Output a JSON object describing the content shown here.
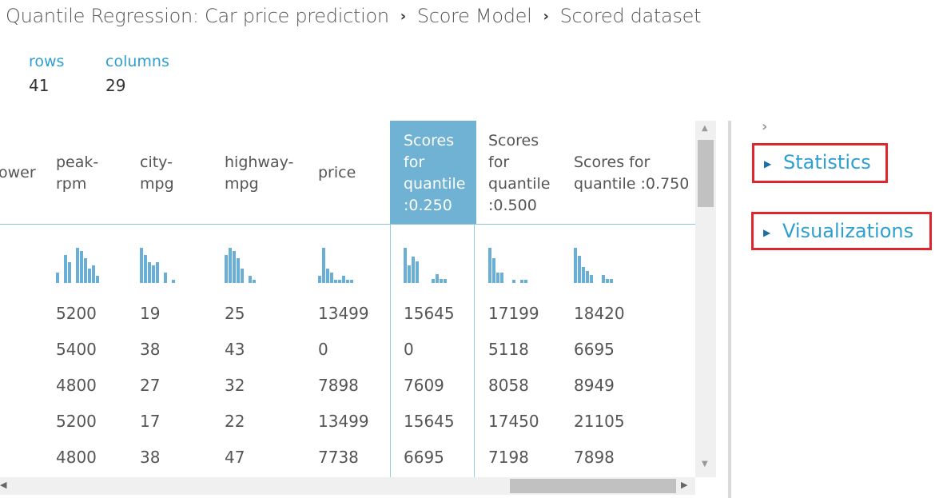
{
  "breadcrumb": {
    "items": [
      "Quantile Regression: Car price prediction",
      "Score Model",
      "Scored dataset"
    ],
    "separator": "›"
  },
  "summary": {
    "rows_label": "rows",
    "rows_value": "41",
    "columns_label": "columns",
    "columns_value": "29"
  },
  "table": {
    "columns": [
      {
        "lines": [
          "ower"
        ]
      },
      {
        "lines": [
          "peak-",
          "rpm"
        ]
      },
      {
        "lines": [
          "city-",
          "mpg"
        ]
      },
      {
        "lines": [
          "highway-",
          "mpg"
        ]
      },
      {
        "lines": [
          "price"
        ]
      },
      {
        "lines": [
          "Scores",
          "for",
          "quantile",
          ":0.250"
        ],
        "selected": true
      },
      {
        "lines": [
          "Scores",
          "for",
          "quantile",
          ":0.500"
        ]
      },
      {
        "lines": [
          "Scores for",
          "quantile :0.750"
        ]
      }
    ],
    "histograms": [
      [],
      [
        3,
        0,
        8,
        6,
        0,
        10,
        9,
        7,
        4,
        5,
        2
      ],
      [
        10,
        8,
        6,
        5,
        6,
        0,
        3,
        0,
        1
      ],
      [
        8,
        10,
        9,
        7,
        4,
        0,
        2,
        1
      ],
      [
        2,
        10,
        4,
        3,
        1,
        1,
        2,
        1,
        1
      ],
      [
        8,
        4,
        6,
        5,
        0,
        0,
        0,
        1,
        2,
        1,
        1
      ],
      [
        10,
        7,
        3,
        3,
        0,
        0,
        1,
        0,
        1,
        1
      ],
      [
        9,
        7,
        4,
        3,
        2,
        0,
        0,
        2,
        1,
        1
      ]
    ],
    "rows": [
      [
        "",
        "5200",
        "19",
        "25",
        "13499",
        "15645",
        "17199",
        "18420"
      ],
      [
        "",
        "5400",
        "38",
        "43",
        "0",
        "0",
        "5118",
        "6695"
      ],
      [
        "",
        "4800",
        "27",
        "32",
        "7898",
        "7609",
        "8058",
        "8949"
      ],
      [
        "",
        "5200",
        "17",
        "22",
        "13499",
        "15645",
        "17450",
        "21105"
      ],
      [
        "",
        "4800",
        "38",
        "47",
        "7738",
        "6695",
        "7198",
        "7898"
      ]
    ]
  },
  "sidebar": {
    "collapse_glyph": "›",
    "sections": [
      {
        "label": "Statistics",
        "arrow": "▶"
      },
      {
        "label": "Visualizations",
        "arrow": "▶"
      }
    ]
  },
  "scroll": {
    "up": "▲",
    "down": "▼",
    "left": "◀",
    "right": "▶"
  },
  "colors": {
    "accent": "#2e9fd1",
    "selected_header": "#6fb2d4",
    "histogram": "#6ab0d6",
    "highlight_box": "#e1252c"
  }
}
